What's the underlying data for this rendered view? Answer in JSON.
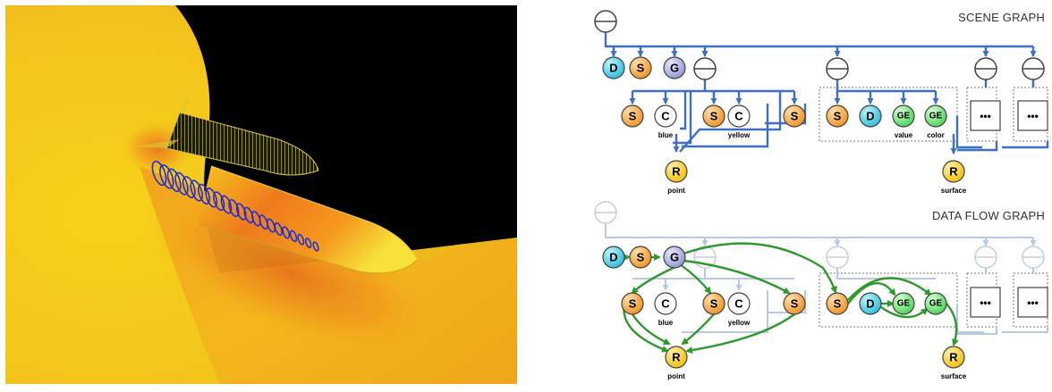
{
  "scene_graph": {
    "title": "SCENE GRAPH",
    "labels": {
      "blue": "blue",
      "yellow": "yellow",
      "value": "value",
      "color": "color",
      "point": "point",
      "surface": "surface"
    },
    "nodes": {
      "d": "D",
      "s": "S",
      "g": "G",
      "c": "C",
      "r": "R",
      "ge": "GE",
      "dots": "•••"
    }
  },
  "data_flow_graph": {
    "title": "DATA FLOW GRAPH",
    "labels": {
      "blue": "blue",
      "yellow": "yellow",
      "point": "point",
      "surface": "surface"
    },
    "nodes": {
      "d": "D",
      "s": "S",
      "g": "G",
      "c": "C",
      "r": "R",
      "ge": "GE",
      "dots": "•••"
    }
  },
  "colors": {
    "scene_edge": "#3d6fc4",
    "dataflow_faded_edge": "#b8c9e6",
    "dataflow_edge": "#2e9a2e",
    "node_D": "#37d0e8",
    "node_S": "#f59a23",
    "node_G": "#9da3d6",
    "node_GE": "#5fe06a",
    "node_R": "#f5c518",
    "node_C": "#ffffff"
  }
}
